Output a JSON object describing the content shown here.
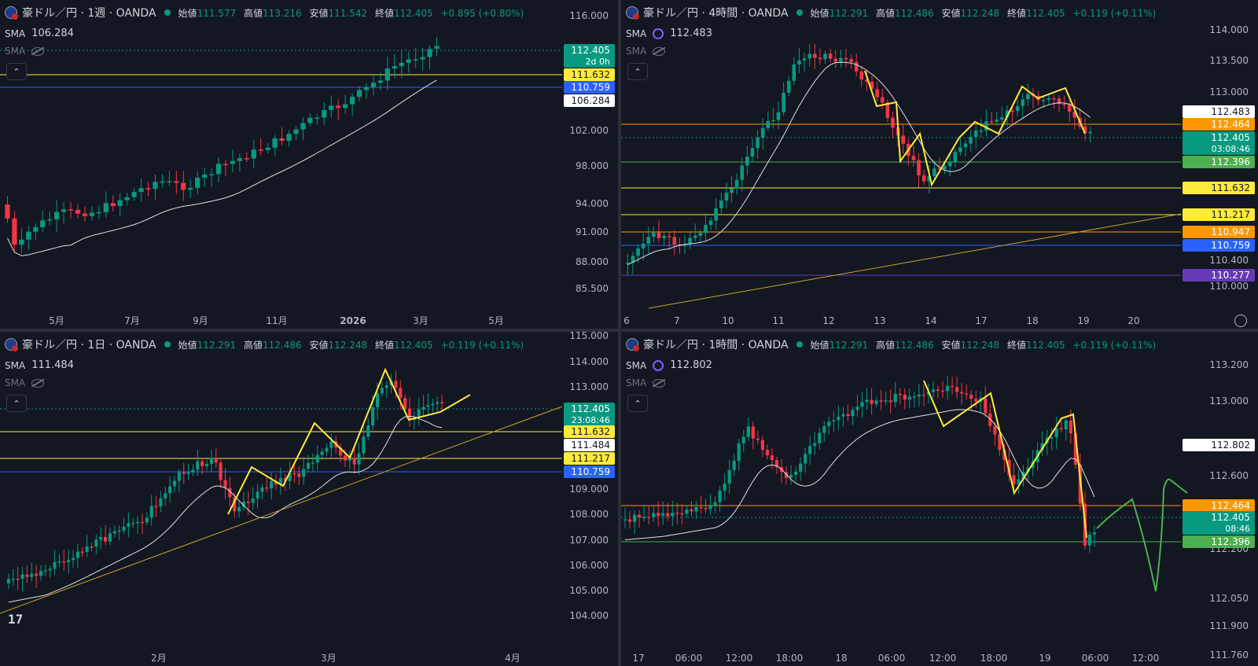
{
  "panes": [
    {
      "title": "豪ドル／円 · 1週 · OANDA",
      "ohlc": {
        "o_label": "始値",
        "o": "111.577",
        "h_label": "高値",
        "h": "113.216",
        "l_label": "安値",
        "l": "111.542",
        "c_label": "終値",
        "c": "112.405",
        "chg": "+0.895 (+0.80%)"
      },
      "sma_label": "SMA",
      "sma_value": "106.284",
      "sma2_label": "SMA",
      "price_ticks": [
        "116.000",
        "102.000",
        "98.000",
        "94.000",
        "91.000",
        "88.000",
        "85.500"
      ],
      "time_ticks": [
        "5月",
        "7月",
        "9月",
        "11月",
        "2026",
        "3月",
        "5月"
      ],
      "price_tags": [
        {
          "text": "112.405",
          "sub": "2d 0h",
          "color": "#089981"
        },
        {
          "text": "111.632",
          "color": "#ffeb3b"
        },
        {
          "text": "110.759",
          "color": "#2962ff"
        },
        {
          "text": "106.284",
          "color": "#ffffff"
        }
      ]
    },
    {
      "title": "豪ドル／円 · 4時間 · OANDA",
      "ohlc": {
        "o_label": "始値",
        "o": "112.291",
        "h_label": "高値",
        "h": "112.486",
        "l_label": "安値",
        "l": "112.248",
        "c_label": "終値",
        "c": "112.405",
        "chg": "+0.119 (+0.11%)"
      },
      "sma_label": "SMA",
      "sma_value": "112.483",
      "sma2_label": "SMA",
      "price_ticks": [
        "114.000",
        "113.500",
        "113.000",
        "110.400",
        "110.000"
      ],
      "time_ticks": [
        "6",
        "7",
        "10",
        "11",
        "12",
        "13",
        "14",
        "17",
        "18",
        "19",
        "20"
      ],
      "price_tags": [
        {
          "text": "112.483",
          "color": "#ffffff"
        },
        {
          "text": "112.464",
          "color": "#ff9800"
        },
        {
          "text": "112.405",
          "sub": "03:08:46",
          "color": "#089981"
        },
        {
          "text": "112.396",
          "color": "#4caf50"
        },
        {
          "text": "111.632",
          "color": "#ffeb3b"
        },
        {
          "text": "111.217",
          "color": "#ffeb3b"
        },
        {
          "text": "110.947",
          "color": "#ff9800"
        },
        {
          "text": "110.759",
          "color": "#2962ff"
        },
        {
          "text": "110.277",
          "color": "#673ab7"
        }
      ]
    },
    {
      "title": "豪ドル／円 · 1日 · OANDA",
      "ohlc": {
        "o_label": "始値",
        "o": "112.291",
        "h_label": "高値",
        "h": "112.486",
        "l_label": "安値",
        "l": "112.248",
        "c_label": "終値",
        "c": "112.405",
        "chg": "+0.119 (+0.11%)"
      },
      "sma_label": "SMA",
      "sma_value": "111.484",
      "sma2_label": "SMA",
      "price_ticks": [
        "115.000",
        "114.000",
        "113.000",
        "109.000",
        "108.000",
        "107.000",
        "106.000",
        "105.000",
        "104.000"
      ],
      "time_ticks": [
        "2月",
        "3月",
        "4月"
      ],
      "price_tags": [
        {
          "text": "112.405",
          "sub": "23:08:46",
          "color": "#089981"
        },
        {
          "text": "111.632",
          "color": "#ffeb3b"
        },
        {
          "text": "111.484",
          "color": "#ffffff"
        },
        {
          "text": "111.217",
          "color": "#ffeb3b"
        },
        {
          "text": "110.759",
          "color": "#2962ff"
        }
      ]
    },
    {
      "title": "豪ドル／円 · 1時間 · OANDA",
      "ohlc": {
        "o_label": "始値",
        "o": "112.291",
        "h_label": "高値",
        "h": "112.486",
        "l_label": "安値",
        "l": "112.248",
        "c_label": "終値",
        "c": "112.405",
        "chg": "+0.119 (+0.11%)"
      },
      "sma_label": "SMA",
      "sma_value": "112.802",
      "sma2_label": "SMA",
      "price_ticks": [
        "113.200",
        "113.000",
        "112.600",
        "112.200",
        "112.050",
        "111.900",
        "111.760"
      ],
      "time_ticks": [
        "17",
        "06:00",
        "12:00",
        "18:00",
        "18",
        "06:00",
        "12:00",
        "18:00",
        "19",
        "06:00",
        "12:00"
      ],
      "price_tags": [
        {
          "text": "112.802",
          "color": "#ffffff"
        },
        {
          "text": "112.464",
          "color": "#ff9800"
        },
        {
          "text": "112.405",
          "sub": "08:46",
          "color": "#089981"
        },
        {
          "text": "112.396",
          "color": "#4caf50"
        }
      ]
    }
  ],
  "colors": {
    "up": "#089981",
    "down": "#f23645",
    "bg": "#131722",
    "sma": "#e0e0e0",
    "yellow": "#ffeb3b",
    "orange": "#ff9800",
    "blue": "#2962ff",
    "purple": "#673ab7",
    "green_draw": "#4caf50"
  },
  "chart_data": [
    {
      "type": "candlestick",
      "title": "豪ドル／円 · 1週 · OANDA",
      "x_ticks": [
        "5月",
        "7月",
        "9月",
        "11月",
        "2026",
        "3月",
        "5月"
      ],
      "y_ticks": [
        116.0,
        102.0,
        98.0,
        94.0,
        91.0,
        88.0,
        85.5
      ],
      "last": 112.405,
      "sma": 106.284,
      "levels": [
        111.632,
        110.759
      ]
    },
    {
      "type": "candlestick",
      "title": "豪ドル／円 · 4時間 · OANDA",
      "x_ticks": [
        "6",
        "7",
        "10",
        "11",
        "12",
        "13",
        "14",
        "17",
        "18",
        "19",
        "20"
      ],
      "y_ticks": [
        114.0,
        113.5,
        113.0,
        110.4,
        110.0
      ],
      "last": 112.405,
      "sma": 112.483,
      "levels": [
        112.464,
        111.632,
        111.217,
        110.947,
        110.759,
        110.277
      ]
    },
    {
      "type": "candlestick",
      "title": "豪ドル／円 · 1日 · OANDA",
      "x_ticks": [
        "2月",
        "3月",
        "4月"
      ],
      "y_ticks": [
        115.0,
        114.0,
        113.0,
        109.0,
        108.0,
        107.0,
        106.0,
        105.0,
        104.0
      ],
      "last": 112.405,
      "sma": 111.484,
      "levels": [
        111.632,
        111.217,
        110.759
      ]
    },
    {
      "type": "candlestick",
      "title": "豪ドル／円 · 1時間 · OANDA",
      "x_ticks": [
        "17",
        "06:00",
        "12:00",
        "18:00",
        "18",
        "06:00",
        "12:00",
        "18:00",
        "19",
        "06:00",
        "12:00"
      ],
      "y_ticks": [
        113.2,
        113.0,
        112.6,
        112.2,
        112.05,
        111.9,
        111.76
      ],
      "last": 112.405,
      "sma": 112.802,
      "levels": [
        112.464,
        112.396
      ]
    }
  ]
}
